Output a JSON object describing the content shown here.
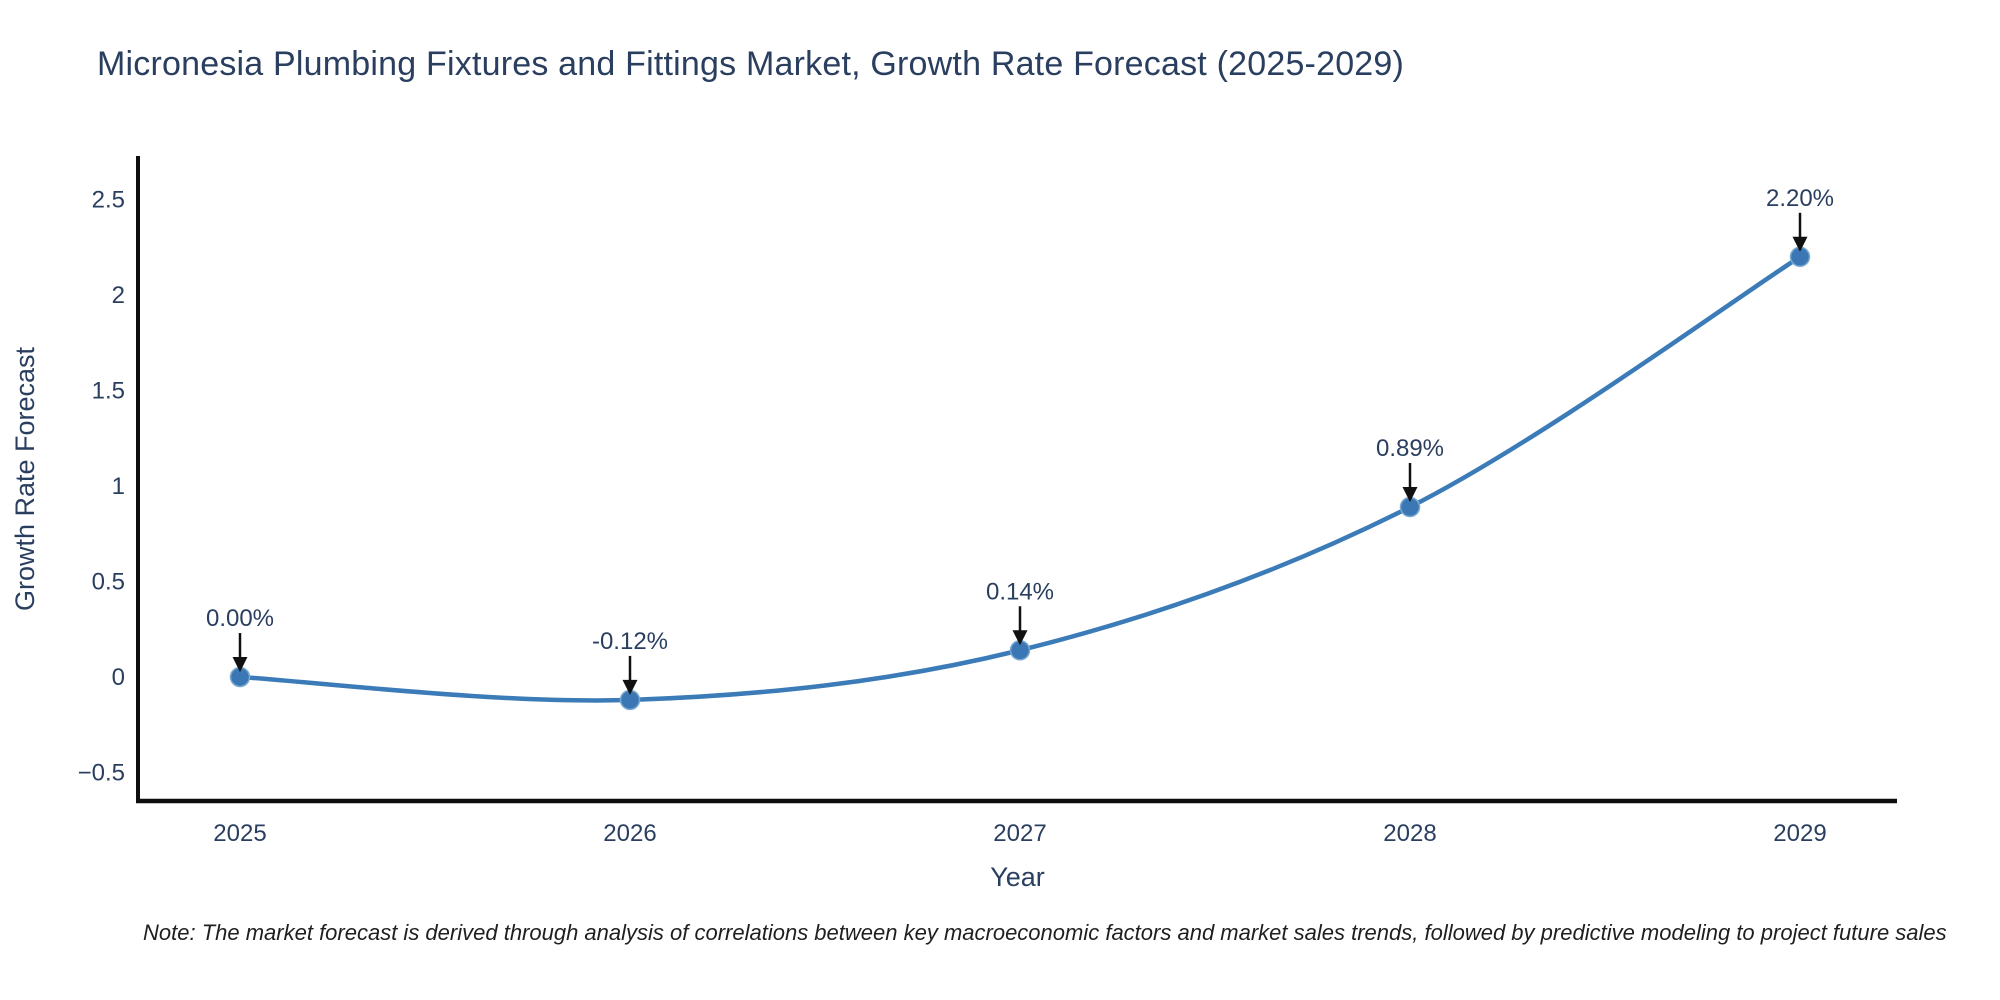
{
  "chart_data": {
    "type": "line",
    "title": "Micronesia Plumbing Fixtures and Fittings Market, Growth Rate Forecast (2025-2029)",
    "xlabel": "Year",
    "ylabel": "Growth Rate Forecast",
    "categories": [
      "2025",
      "2026",
      "2027",
      "2028",
      "2029"
    ],
    "series": [
      {
        "name": "Growth Rate Forecast",
        "values": [
          0.0,
          -0.12,
          0.14,
          0.89,
          2.2
        ]
      }
    ],
    "point_labels": [
      "0.00%",
      "-0.12%",
      "0.14%",
      "0.89%",
      "2.20%"
    ],
    "yticks": [
      2.5,
      2,
      1.5,
      1,
      0.5,
      0,
      -0.5
    ],
    "ylim": [
      -0.65,
      2.72
    ],
    "line_shape": "spline",
    "markers": true,
    "grid": false,
    "legend": false,
    "annotation_arrows": true,
    "colors": {
      "line": "#3b7bb8",
      "marker": "#3a77b4",
      "marker_edge": "#79a9d1",
      "axis": "#0e0e0e",
      "tick_text": "#2a3f5f",
      "arrow": "#111111",
      "background": "#ffffff"
    },
    "note": "Note: The market forecast is derived through analysis of correlations between key macroeconomic factors and market sales trends, followed by predictive modeling to project future sales"
  }
}
